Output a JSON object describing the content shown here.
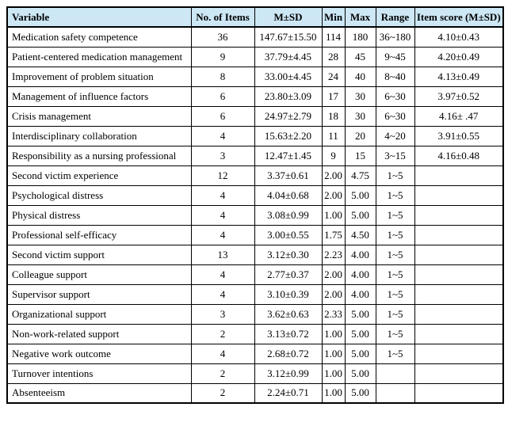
{
  "colors": {
    "header_background": "#cde7f5",
    "border": "#000000",
    "text": "#000000",
    "page_background": "#ffffff"
  },
  "table": {
    "columns": [
      "Variable",
      "No. of Items",
      "M±SD",
      "Min",
      "Max",
      "Range",
      "Item score (M±SD)"
    ],
    "rows": [
      {
        "variable": "Medication safety competence",
        "items": "36",
        "msd": "147.67±15.50",
        "min": "114",
        "max": "180",
        "range": "36~180",
        "item_score": "4.10±0.43"
      },
      {
        "variable": "Patient-centered medication management",
        "items": "9",
        "msd": "37.79±4.45",
        "min": "28",
        "max": "45",
        "range": "9~45",
        "item_score": "4.20±0.49"
      },
      {
        "variable": "Improvement of problem situation",
        "items": "8",
        "msd": "33.00±4.45",
        "min": "24",
        "max": "40",
        "range": "8~40",
        "item_score": "4.13±0.49"
      },
      {
        "variable": "Management of influence factors",
        "items": "6",
        "msd": "23.80±3.09",
        "min": "17",
        "max": "30",
        "range": "6~30",
        "item_score": "3.97±0.52"
      },
      {
        "variable": "Crisis management",
        "items": "6",
        "msd": "24.97±2.79",
        "min": "18",
        "max": "30",
        "range": "6~30",
        "item_score": "4.16± .47"
      },
      {
        "variable": "Interdisciplinary collaboration",
        "items": "4",
        "msd": "15.63±2.20",
        "min": "11",
        "max": "20",
        "range": "4~20",
        "item_score": "3.91±0.55"
      },
      {
        "variable": "Responsibility as a nursing professional",
        "items": "3",
        "msd": "12.47±1.45",
        "min": "9",
        "max": "15",
        "range": "3~15",
        "item_score": "4.16±0.48"
      },
      {
        "variable": "Second victim experience",
        "items": "12",
        "msd": "3.37±0.61",
        "min": "2.00",
        "max": "4.75",
        "range": "1~5",
        "item_score": ""
      },
      {
        "variable": "Psychological distress",
        "items": "4",
        "msd": "4.04±0.68",
        "min": "2.00",
        "max": "5.00",
        "range": "1~5",
        "item_score": ""
      },
      {
        "variable": "Physical distress",
        "items": "4",
        "msd": "3.08±0.99",
        "min": "1.00",
        "max": "5.00",
        "range": "1~5",
        "item_score": ""
      },
      {
        "variable": "Professional self-efficacy",
        "items": "4",
        "msd": "3.00±0.55",
        "min": "1.75",
        "max": "4.50",
        "range": "1~5",
        "item_score": ""
      },
      {
        "variable": "Second victim support",
        "items": "13",
        "msd": "3.12±0.30",
        "min": "2.23",
        "max": "4.00",
        "range": "1~5",
        "item_score": ""
      },
      {
        "variable": "Colleague support",
        "items": "4",
        "msd": "2.77±0.37",
        "min": "2.00",
        "max": "4.00",
        "range": "1~5",
        "item_score": ""
      },
      {
        "variable": "Supervisor support",
        "items": "4",
        "msd": "3.10±0.39",
        "min": "2.00",
        "max": "4.00",
        "range": "1~5",
        "item_score": ""
      },
      {
        "variable": "Organizational support",
        "items": "3",
        "msd": "3.62±0.63",
        "min": "2.33",
        "max": "5.00",
        "range": "1~5",
        "item_score": ""
      },
      {
        "variable": "Non-work-related support",
        "items": "2",
        "msd": "3.13±0.72",
        "min": "1.00",
        "max": "5.00",
        "range": "1~5",
        "item_score": ""
      },
      {
        "variable": "Negative work outcome",
        "items": "4",
        "msd": "2.68±0.72",
        "min": "1.00",
        "max": "5.00",
        "range": "1~5",
        "item_score": ""
      },
      {
        "variable": "Turnover intentions",
        "items": "2",
        "msd": "3.12±0.99",
        "min": "1.00",
        "max": "5.00",
        "range": "",
        "item_score": ""
      },
      {
        "variable": "Absenteeism",
        "items": "2",
        "msd": "2.24±0.71",
        "min": "1.00",
        "max": "5.00",
        "range": "",
        "item_score": ""
      }
    ]
  }
}
